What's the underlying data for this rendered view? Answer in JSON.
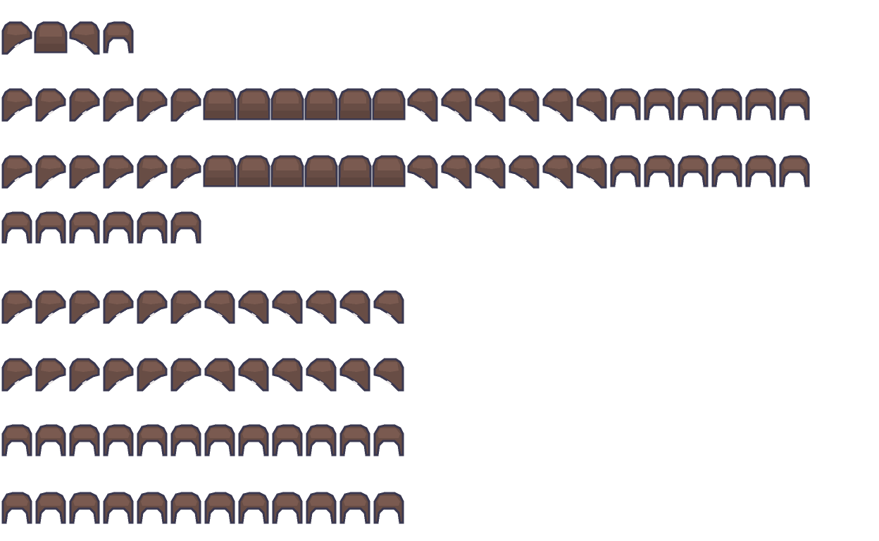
{
  "sprite_sheet": {
    "subject": "hair sprites",
    "colors": {
      "outline": "#3a3850",
      "fill": "#684d45",
      "highlight": "#7a5a50",
      "shadow": "#5e453e"
    },
    "rows": [
      {
        "frames": [
          "side-right",
          "front",
          "side-left",
          "back"
        ]
      },
      {
        "frames": [
          "side-right",
          "side-right",
          "side-right",
          "side-right",
          "side-right",
          "side-right",
          "front",
          "front",
          "front",
          "front",
          "front",
          "front",
          "side-left",
          "side-left",
          "side-left",
          "side-left",
          "side-left",
          "side-left",
          "back",
          "back",
          "back",
          "back",
          "back",
          "back"
        ]
      },
      {
        "frames": [
          "side-right",
          "side-right",
          "side-right",
          "side-right",
          "side-right",
          "side-right",
          "front",
          "front",
          "front",
          "front",
          "front",
          "front",
          "side-left",
          "side-left",
          "side-left",
          "side-left",
          "side-left",
          "side-left",
          "back",
          "back",
          "back",
          "back",
          "back",
          "back"
        ]
      },
      {
        "frames": [
          "back",
          "back",
          "back",
          "back",
          "back",
          "back"
        ]
      },
      {
        "frames": [
          "side-right",
          "side-right",
          "side-right",
          "side-right",
          "side-right",
          "side-right",
          "side-left",
          "side-left",
          "side-left",
          "side-left",
          "side-left",
          "side-left"
        ]
      },
      {
        "frames": [
          "side-right",
          "side-right",
          "side-right",
          "side-right",
          "side-right",
          "side-right",
          "side-left",
          "side-left",
          "side-left",
          "side-left",
          "side-left",
          "side-left"
        ]
      },
      {
        "frames": [
          "back",
          "back",
          "back",
          "back",
          "back",
          "back",
          "back",
          "back",
          "back",
          "back",
          "back",
          "back"
        ]
      },
      {
        "frames": [
          "back",
          "back",
          "back",
          "back",
          "back",
          "back",
          "back",
          "back",
          "back",
          "back",
          "back",
          "back"
        ]
      }
    ]
  }
}
